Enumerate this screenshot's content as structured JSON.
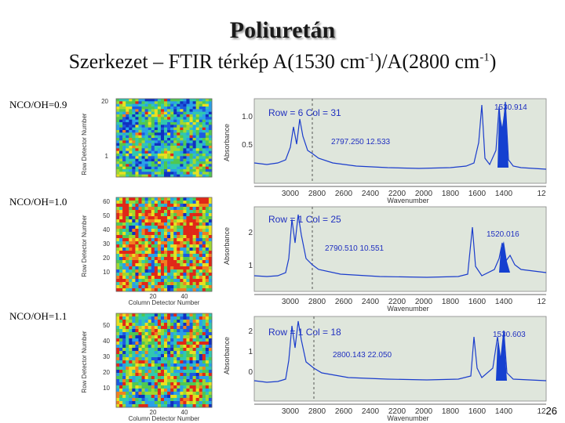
{
  "slide": {
    "title": "Poliuretán",
    "subtitle_parts": [
      "Szerkezet – FTIR térkép A(1530 cm",
      "-1",
      ")/A(2800 cm",
      "-1",
      ")"
    ],
    "page_number": "26"
  },
  "colors": {
    "spectrum_line": "#1a3ccc",
    "peak_fill": "#1540d0",
    "panel_bg": "#dfe6dc",
    "annotation": "#e0201e"
  },
  "rows": [
    {
      "label": "NCO/OH=0.9",
      "map": {
        "y_axis_label": "Row Detector Number",
        "x_axis_label": "",
        "y_ticks": [
          "20",
          "",
          "",
          "",
          "1"
        ],
        "x_ticks": []
      },
      "spectrum": {
        "cursor": "Row = 6  Col = 31",
        "ref_peak": "2797.250  12.533",
        "amide_peak": "1530.914",
        "y_axis_label": "Absorbance",
        "y_ticks": [
          "1.0",
          "0.5"
        ],
        "x_axis_label": "Wavenumber",
        "x_ticks": [
          "3000",
          "2800",
          "2600",
          "2400",
          "2200",
          "2000",
          "1800",
          "1600",
          "1400",
          "12"
        ]
      }
    },
    {
      "label": "NCO/OH=1.0",
      "map": {
        "y_axis_label": "Row Detector Number",
        "x_axis_label": "Column Detector Number",
        "y_ticks": [
          "60",
          "50",
          "40",
          "30",
          "20",
          "10"
        ],
        "x_ticks": [
          "20",
          "40"
        ]
      },
      "spectrum": {
        "cursor": "Row = 1  Col = 25",
        "ref_peak": "2790.510  10.551",
        "amide_peak": "1520.016",
        "y_axis_label": "Absorbance",
        "y_ticks": [
          "2",
          "1"
        ],
        "x_axis_label": "Wavenumber",
        "x_ticks": [
          "3000",
          "2800",
          "2600",
          "2400",
          "2200",
          "2000",
          "1800",
          "1600",
          "1400",
          "12"
        ]
      }
    },
    {
      "label": "NCO/OH=1.1",
      "map": {
        "y_axis_label": "Row Detector Number",
        "x_axis_label": "Column Detector Number",
        "y_ticks": [
          "50",
          "40",
          "30",
          "20",
          "10"
        ],
        "x_ticks": [
          "20",
          "40"
        ]
      },
      "spectrum": {
        "cursor": "Row = 1  Col = 18",
        "ref_peak": "2800.143  22.050",
        "amide_peak": "1530.603",
        "y_axis_label": "Absorbance",
        "y_ticks": [
          "2",
          "1",
          "0"
        ],
        "x_axis_label": "Wavenumber",
        "x_ticks": [
          "3000",
          "2800",
          "2600",
          "2400",
          "2200",
          "2000",
          "1800",
          "1600",
          "1400",
          "12"
        ]
      }
    }
  ]
}
